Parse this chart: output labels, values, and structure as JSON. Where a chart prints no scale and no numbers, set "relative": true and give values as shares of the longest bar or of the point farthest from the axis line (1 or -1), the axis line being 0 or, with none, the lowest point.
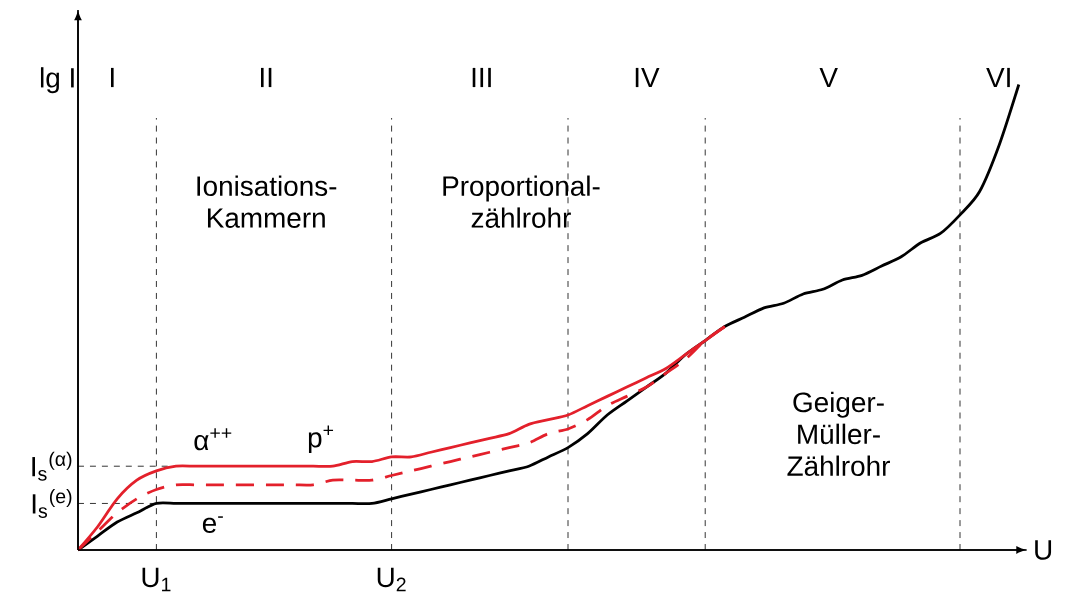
{
  "chart_data": {
    "type": "line",
    "relative": true,
    "xlabel": "U",
    "ylabel": "lg I",
    "categories": [
      null,
      null,
      null,
      null,
      "U$_{1}$",
      null,
      null,
      null,
      null,
      null,
      null,
      null,
      null,
      null,
      null,
      null,
      "U$_{2}$",
      null,
      null,
      null,
      null,
      null,
      null,
      null,
      null,
      null,
      null,
      null,
      null,
      null,
      null,
      null,
      null,
      null,
      null,
      null,
      null,
      null,
      null,
      null,
      null,
      null,
      null,
      null,
      null,
      null,
      null,
      null,
      null
    ],
    "tick_labels": "x",
    "marker": "none",
    "grid": "x",
    "series": [
      {
        "color": "#000000",
        "values": [
          0,
          0.03,
          0.06,
          0.08,
          0.1,
          0.1,
          0.1,
          0.1,
          0.1,
          0.1,
          0.1,
          0.1,
          0.1,
          0.1,
          0.1,
          0.1,
          0.11,
          0.12,
          0.13,
          0.14,
          0.15,
          0.16,
          0.17,
          0.18,
          0.2,
          0.22,
          0.25,
          0.29,
          0.32,
          0.35,
          0.38,
          0.42,
          0.45,
          0.48,
          0.5,
          0.52,
          0.53,
          0.55,
          0.56,
          0.58,
          0.59,
          0.61,
          0.63,
          0.66,
          0.68,
          0.72,
          0.77,
          0.87,
          1
        ]
      },
      {
        "color": "#e3202b",
        "values": [
          0,
          0.05,
          0.11,
          0.15,
          0.17,
          0.18,
          0.18,
          0.18,
          0.18,
          0.18,
          0.18,
          0.18,
          0.18,
          0.18,
          0.19,
          0.19,
          0.2,
          0.2,
          0.21,
          0.22,
          0.23,
          0.24,
          0.25,
          0.27,
          0.28,
          0.29,
          0.31,
          0.33,
          0.35,
          0.37,
          0.39,
          0.42,
          0.45,
          0.48,
          null,
          null,
          null,
          null,
          null,
          null,
          null,
          null,
          null,
          null,
          null,
          null,
          null,
          null,
          null
        ]
      },
      {
        "color": "#e3202b",
        "line_style": "dashed",
        "values": [
          0,
          0.04,
          0.08,
          0.11,
          0.13,
          0.14,
          0.14,
          0.14,
          0.14,
          0.14,
          0.14,
          0.14,
          0.14,
          0.15,
          0.15,
          0.15,
          0.16,
          0.17,
          0.18,
          0.19,
          0.2,
          0.21,
          0.22,
          0.23,
          0.25,
          0.26,
          0.28,
          0.31,
          0.33,
          0.35,
          0.38,
          0.41,
          0.45,
          0.48,
          null,
          null,
          null,
          null,
          null,
          null,
          null,
          null,
          null,
          null,
          null,
          null,
          null,
          null,
          null
        ]
      }
    ],
    "ref_lines": [
      {
        "axis": "y",
        "value": 0.18,
        "label": "I$_{s}$$^{(α)}$"
      },
      {
        "axis": "y",
        "value": 0.1,
        "label": "I$_{s}$$^{(e)}$"
      }
    ],
    "annotations": [
      "I",
      "II",
      "III",
      "IV",
      "V",
      "VI",
      "Ionisations-Kammern",
      "Proportional-zählrohr",
      "Geiger-Müller-Zählrohr",
      "α$^{++}$",
      "p$^{+}$",
      "e$^{-}$"
    ]
  }
}
